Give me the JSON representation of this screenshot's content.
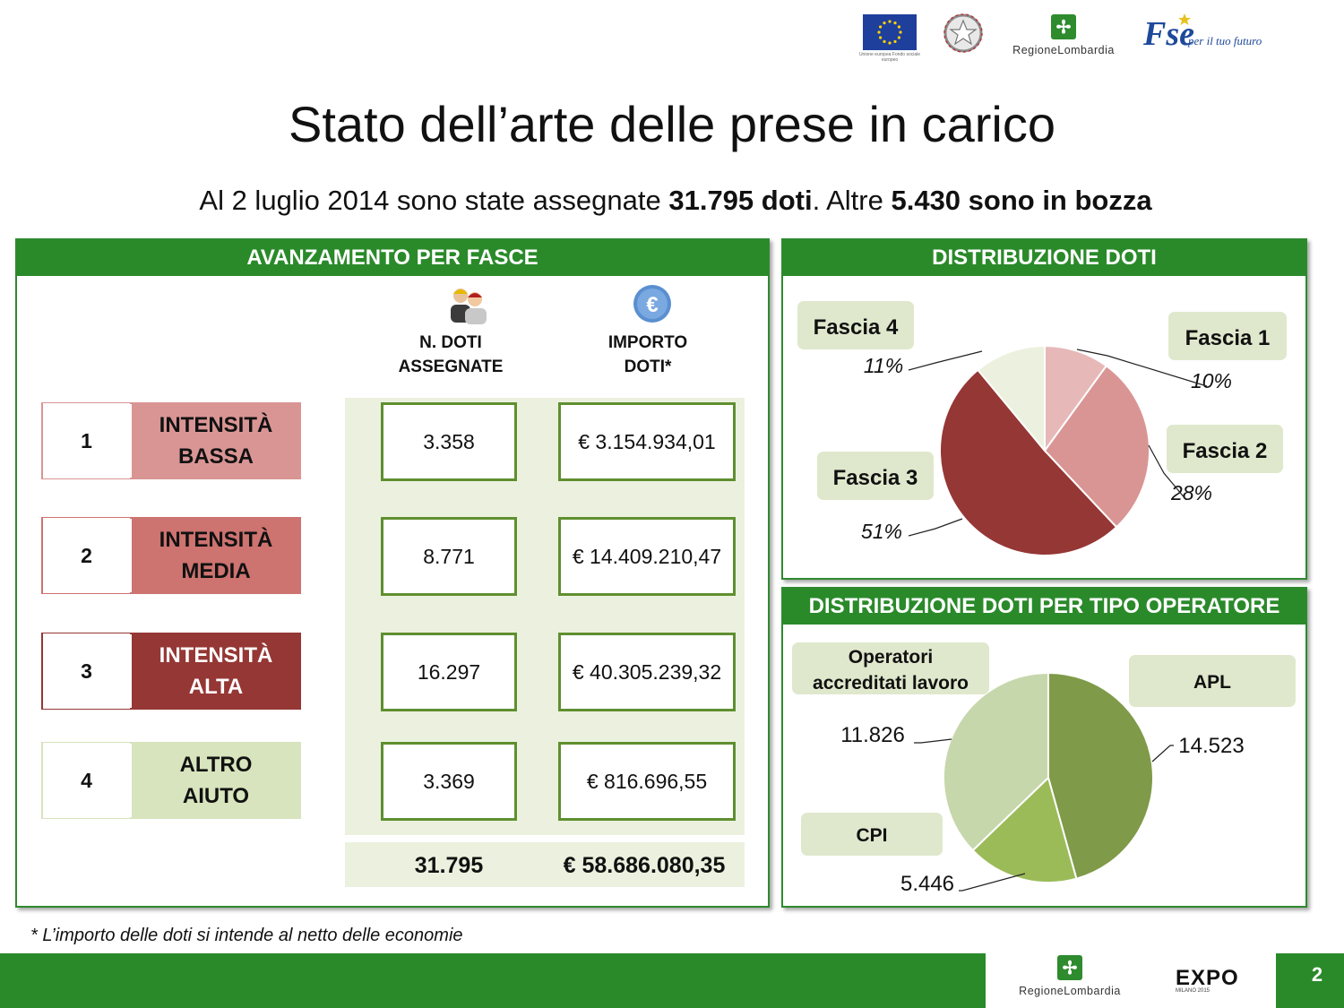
{
  "header": {
    "eu_caption": "Unione europea Fondo sociale europeo",
    "region_logo": "RegioneLombardia",
    "fse_mark": "Fse",
    "fse_tagline": "per il tuo futuro"
  },
  "title": "Stato dell’arte delle prese in carico",
  "subtitle": {
    "part1": "Al 2 luglio 2014 sono state assegnate ",
    "bold1": "31.795 doti",
    "part2": ". Altre ",
    "bold2": "5.430 sono in bozza"
  },
  "left_panel": {
    "header": "AVANZAMENTO PER FASCE",
    "col1_head_line1": "N. DOTI",
    "col1_head_line2": "ASSEGNATE",
    "col2_head_line1": "IMPORTO",
    "col2_head_line2": "DOTI*",
    "icon_people": "people-icon",
    "icon_euro": "euro-coin-icon",
    "euro_symbol": "€",
    "rows": [
      {
        "num": "1",
        "label1": "INTENSITÀ",
        "label2": "BASSA",
        "doti": "3.358",
        "importo": "€ 3.154.934,01",
        "color": "#d99594",
        "text_color": "#111111"
      },
      {
        "num": "2",
        "label1": "INTENSITÀ",
        "label2": "MEDIA",
        "doti": "8.771",
        "importo": "€ 14.409.210,47",
        "color": "#cd7370",
        "text_color": "#111111"
      },
      {
        "num": "3",
        "label1": "INTENSITÀ",
        "label2": "ALTA",
        "doti": "16.297",
        "importo": "€ 40.305.239,32",
        "color": "#953735",
        "text_color": "#ffffff"
      },
      {
        "num": "4",
        "label1": "ALTRO",
        "label2": "AIUTO",
        "doti": "3.369",
        "importo": "€ 816.696,55",
        "color": "#d7e4bd",
        "text_color": "#111111"
      }
    ],
    "total_doti": "31.795",
    "total_importo": "€ 58.686.080,35"
  },
  "chart_data": [
    {
      "type": "pie",
      "title": "DISTRIBUZIONE DOTI",
      "categories": [
        "Fascia 1",
        "Fascia 2",
        "Fascia 3",
        "Fascia 4"
      ],
      "values": [
        10,
        28,
        51,
        11
      ],
      "value_labels": [
        "10%",
        "28%",
        "51%",
        "11%"
      ],
      "colors": [
        "#e6b9b8",
        "#d99594",
        "#953735",
        "#ebf1de"
      ]
    },
    {
      "type": "pie",
      "title": "DISTRIBUZIONE DOTI PER TIPO OPERATORE",
      "categories": [
        "APL",
        "CPI",
        "Operatori accreditati lavoro"
      ],
      "values": [
        14523,
        5446,
        11826
      ],
      "value_labels": [
        "14.523",
        "5.446",
        "11.826"
      ],
      "colors": [
        "#7f9a48",
        "#9bbb59",
        "#c7d7ac"
      ]
    }
  ],
  "labels": {
    "operatori_line1": "Operatori",
    "operatori_line2": "accreditati lavoro"
  },
  "footnote": "* L’importo delle doti  si intende al netto delle economie",
  "footer": {
    "region_logo": "RegioneLombardia",
    "expo": "EXPO",
    "expo_sub": "MILANO 2015",
    "page": "2"
  }
}
